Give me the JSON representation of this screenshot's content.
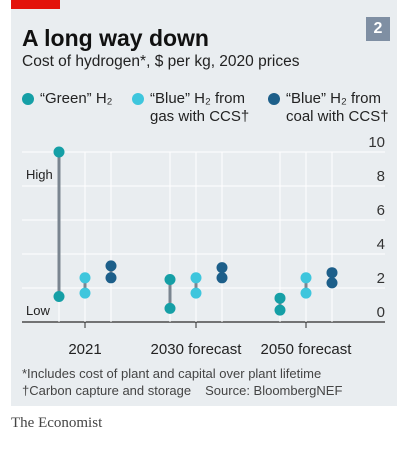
{
  "header": {
    "title": "A long way down",
    "subtitle": "Cost of hydrogen*, $ per kg, 2020 prices",
    "chart_number": "2"
  },
  "legend": [
    {
      "label_line1": "“Green” H₂",
      "label_line2": "",
      "color": "#159fa6"
    },
    {
      "label_line1": "“Blue” H₂ from",
      "label_line2": "gas with CCS†",
      "color": "#3ec6dd"
    },
    {
      "label_line1": "“Blue” H₂ from",
      "label_line2": "coal with CCS†",
      "color": "#1d5f8a"
    }
  ],
  "colors": {
    "accent_red": "#e3120b",
    "card_bg": "#e9edf0",
    "grid": "#ffffff",
    "range_line": "#7a8590"
  },
  "annotations": {
    "high": "High",
    "low": "Low"
  },
  "footnotes": {
    "note1": "*Includes cost of plant and capital over plant lifetime",
    "note2": "†Carbon capture and storage",
    "source": "Source: BloombergNEF"
  },
  "publisher": "The Economist",
  "chart_data": {
    "type": "range-dot",
    "title": "A long way down",
    "subtitle": "Cost of hydrogen*, $ per kg, 2020 prices",
    "categories": [
      "2021",
      "2030 forecast",
      "2050 forecast"
    ],
    "series": [
      {
        "name": "“Green” H₂",
        "low": [
          1.5,
          0.8,
          0.7
        ],
        "high": [
          10.0,
          2.5,
          1.4
        ]
      },
      {
        "name": "“Blue” H₂ from gas with CCS†",
        "low": [
          1.7,
          1.7,
          1.7
        ],
        "high": [
          2.6,
          2.6,
          2.6
        ]
      },
      {
        "name": "“Blue” H₂ from coal with CCS†",
        "low": [
          2.6,
          2.6,
          2.3
        ],
        "high": [
          3.3,
          3.2,
          2.9
        ]
      }
    ],
    "y_ticks": [
      0,
      2,
      4,
      6,
      8,
      10
    ],
    "ylim": [
      0,
      10
    ],
    "grid": true
  }
}
